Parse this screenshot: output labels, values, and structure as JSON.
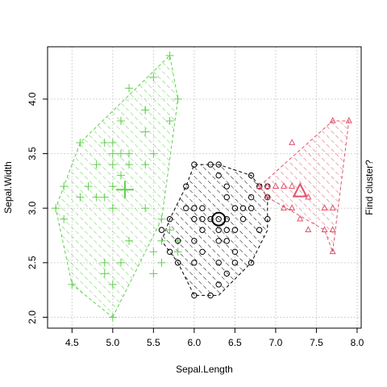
{
  "chart_data": {
    "type": "scatter",
    "title": "",
    "xlabel": "Sepal.Length",
    "ylabel": "Sepal.Width",
    "side_label": "Find cluster?",
    "xlim": [
      4.2,
      8.05
    ],
    "ylim": [
      1.9,
      4.48
    ],
    "x_ticks": [
      4.5,
      5.0,
      5.5,
      6.0,
      6.5,
      7.0,
      7.5,
      8.0
    ],
    "x_tick_labels": [
      "4.5",
      "5.0",
      "5.5",
      "6.0",
      "6.5",
      "7.0",
      "7.5",
      "8.0"
    ],
    "y_ticks": [
      2.0,
      2.5,
      3.0,
      3.5,
      4.0
    ],
    "y_tick_labels": [
      "2.0",
      "2.5",
      "3.0",
      "3.5",
      "4.0"
    ],
    "grid": true,
    "legend": "none",
    "series": [
      {
        "color": "#61D04F",
        "marker": "plus",
        "centroid": [
          5.15,
          3.17
        ],
        "hull": [
          [
            5.0,
            2.0
          ],
          [
            5.6,
            2.9
          ],
          [
            5.8,
            4.0
          ],
          [
            5.7,
            4.4
          ],
          [
            4.6,
            3.6
          ],
          [
            4.3,
            3.0
          ],
          [
            4.5,
            2.3
          ]
        ],
        "points": [
          [
            5.7,
            4.4
          ],
          [
            5.5,
            4.2
          ],
          [
            5.2,
            4.1
          ],
          [
            5.8,
            4.0
          ],
          [
            5.4,
            3.9
          ],
          [
            5.7,
            3.8
          ],
          [
            5.1,
            3.8
          ],
          [
            5.4,
            3.7
          ],
          [
            5.0,
            3.6
          ],
          [
            4.6,
            3.6
          ],
          [
            4.9,
            3.6
          ],
          [
            5.2,
            3.5
          ],
          [
            5.1,
            3.5
          ],
          [
            5.0,
            3.5
          ],
          [
            4.8,
            3.4
          ],
          [
            5.0,
            3.4
          ],
          [
            5.4,
            3.4
          ],
          [
            5.2,
            3.4
          ],
          [
            5.1,
            3.3
          ],
          [
            5.5,
            3.5
          ],
          [
            4.7,
            3.2
          ],
          [
            4.6,
            3.1
          ],
          [
            4.8,
            3.1
          ],
          [
            4.9,
            3.1
          ],
          [
            5.0,
            3.2
          ],
          [
            4.4,
            3.2
          ],
          [
            5.4,
            3.0
          ],
          [
            5.0,
            3.0
          ],
          [
            4.3,
            3.0
          ],
          [
            4.4,
            2.9
          ],
          [
            5.2,
            2.7
          ],
          [
            4.9,
            2.5
          ],
          [
            5.0,
            2.3
          ],
          [
            4.5,
            2.3
          ],
          [
            5.0,
            2.0
          ],
          [
            5.6,
            2.9
          ],
          [
            5.5,
            2.4
          ],
          [
            5.1,
            2.5
          ],
          [
            5.6,
            2.5
          ],
          [
            4.9,
            2.4
          ],
          [
            5.8,
            2.7
          ],
          [
            5.7,
            2.8
          ],
          [
            5.5,
            2.6
          ],
          [
            5.6,
            2.7
          ],
          [
            5.8,
            2.6
          ],
          [
            5.4,
            3.9
          ]
        ]
      },
      {
        "color": "#000000",
        "marker": "circle",
        "centroid": [
          6.3,
          2.9
        ],
        "hull": [
          [
            6.2,
            2.2
          ],
          [
            6.0,
            2.2
          ],
          [
            5.8,
            2.5
          ],
          [
            5.6,
            2.7
          ],
          [
            5.7,
            2.9
          ],
          [
            5.9,
            3.2
          ],
          [
            6.0,
            3.4
          ],
          [
            6.3,
            3.4
          ],
          [
            6.7,
            3.3
          ],
          [
            6.9,
            3.1
          ],
          [
            6.9,
            2.8
          ],
          [
            6.7,
            2.5
          ],
          [
            6.3,
            2.2
          ]
        ],
        "points": [
          [
            6.0,
            3.4
          ],
          [
            6.2,
            3.4
          ],
          [
            6.3,
            3.4
          ],
          [
            5.9,
            3.2
          ],
          [
            6.4,
            3.2
          ],
          [
            6.7,
            3.3
          ],
          [
            6.8,
            3.2
          ],
          [
            6.9,
            3.1
          ],
          [
            6.1,
            3.0
          ],
          [
            6.5,
            3.0
          ],
          [
            6.7,
            3.1
          ],
          [
            6.4,
            3.1
          ],
          [
            6.9,
            3.2
          ],
          [
            6.7,
            3.0
          ],
          [
            6.3,
            3.3
          ],
          [
            6.0,
            3.0
          ],
          [
            5.9,
            3.0
          ],
          [
            6.3,
            2.9
          ],
          [
            6.4,
            2.9
          ],
          [
            6.5,
            2.8
          ],
          [
            6.8,
            2.8
          ],
          [
            5.8,
            2.7
          ],
          [
            6.0,
            2.7
          ],
          [
            6.3,
            2.7
          ],
          [
            6.4,
            2.8
          ],
          [
            6.1,
            2.8
          ],
          [
            5.6,
            2.8
          ],
          [
            6.2,
            2.9
          ],
          [
            6.6,
            2.9
          ],
          [
            6.9,
            2.9
          ],
          [
            6.0,
            2.9
          ],
          [
            5.7,
            2.9
          ],
          [
            6.3,
            2.8
          ],
          [
            6.7,
            2.5
          ],
          [
            6.3,
            2.5
          ],
          [
            5.8,
            2.5
          ],
          [
            6.1,
            2.6
          ],
          [
            6.5,
            2.6
          ],
          [
            6.0,
            2.5
          ],
          [
            6.4,
            2.7
          ],
          [
            6.0,
            2.2
          ],
          [
            6.2,
            2.2
          ],
          [
            6.3,
            2.3
          ],
          [
            6.4,
            2.4
          ],
          [
            6.5,
            2.5
          ],
          [
            5.7,
            2.6
          ],
          [
            6.1,
            2.9
          ],
          [
            6.6,
            3.0
          ]
        ]
      },
      {
        "color": "#DF536B",
        "marker": "triangle",
        "centroid": [
          7.3,
          3.15
        ],
        "hull": [
          [
            7.7,
            2.6
          ],
          [
            7.9,
            3.8
          ],
          [
            7.7,
            3.8
          ],
          [
            6.8,
            3.2
          ],
          [
            6.9,
            3.1
          ],
          [
            7.6,
            2.8
          ]
        ],
        "points": [
          [
            7.7,
            3.8
          ],
          [
            7.9,
            3.8
          ],
          [
            7.2,
            3.6
          ],
          [
            6.8,
            3.2
          ],
          [
            6.9,
            3.2
          ],
          [
            7.0,
            3.2
          ],
          [
            7.1,
            3.2
          ],
          [
            7.4,
            3.1
          ],
          [
            6.9,
            3.1
          ],
          [
            7.2,
            3.0
          ],
          [
            7.6,
            3.0
          ],
          [
            7.7,
            3.0
          ],
          [
            7.1,
            3.0
          ],
          [
            7.3,
            2.9
          ],
          [
            7.6,
            2.8
          ],
          [
            7.4,
            2.8
          ],
          [
            7.7,
            2.8
          ],
          [
            7.7,
            2.6
          ],
          [
            7.2,
            3.2
          ]
        ]
      }
    ]
  }
}
